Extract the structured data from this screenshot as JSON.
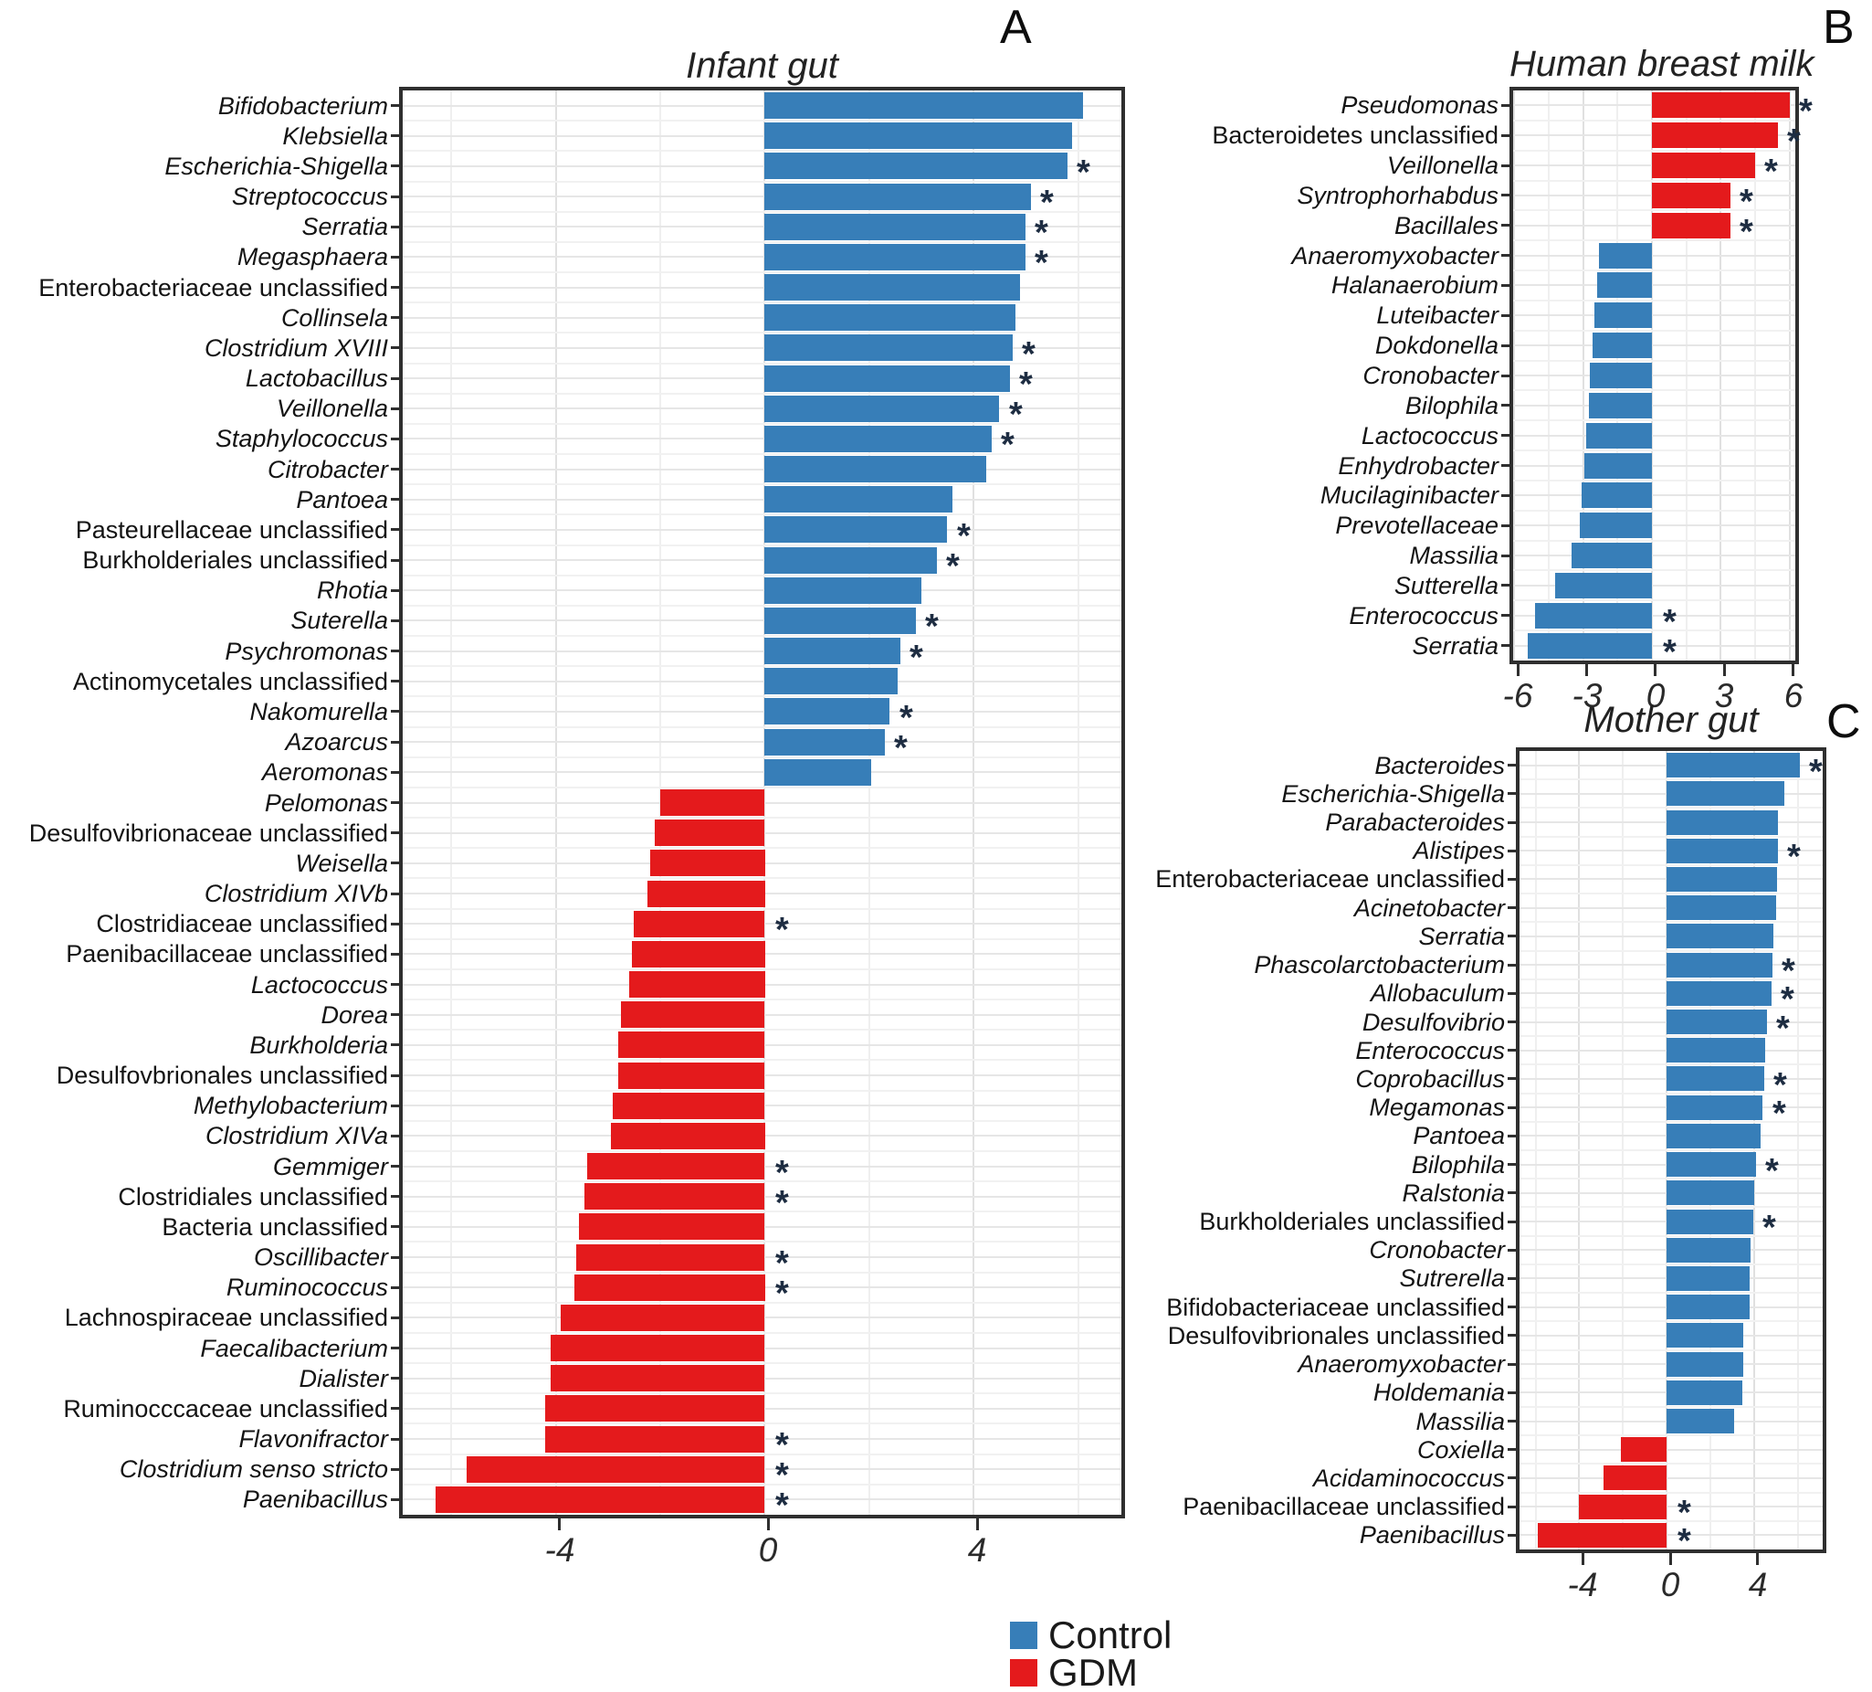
{
  "figure": {
    "background": "#ffffff"
  },
  "colors": {
    "control": "#377EB8",
    "gdm": "#E41A1C",
    "asterisk": "#1e2d42"
  },
  "legend": {
    "items": [
      {
        "label": "Control",
        "color": "#377EB8"
      },
      {
        "label": "GDM",
        "color": "#E41A1C"
      }
    ]
  },
  "chart_data": [
    {
      "id": "infant-gut",
      "type": "bar",
      "orientation": "horizontal",
      "title": "Infant gut",
      "panel_letter": "A",
      "xlim": [
        -7.0,
        6.9
      ],
      "xticks": [
        -4,
        0,
        4
      ],
      "xgrid_minor": [
        -6,
        -2,
        2,
        6
      ],
      "value_meaning": "LDA effect size; positive = Control (blue), negative = GDM (red)",
      "bars": [
        {
          "label": "Bifidobacterium",
          "value": 6.1,
          "group": "Control",
          "sig": false
        },
        {
          "label": "Klebsiella",
          "value": 5.9,
          "group": "Control",
          "sig": false
        },
        {
          "label": "Escherichia-Shigella",
          "value": 5.8,
          "group": "Control",
          "sig": true
        },
        {
          "label": "Streptococcus",
          "value": 5.1,
          "group": "Control",
          "sig": true
        },
        {
          "label": "Serratia",
          "value": 5.0,
          "group": "Control",
          "sig": true
        },
        {
          "label": "Megasphaera",
          "value": 5.0,
          "group": "Control",
          "sig": true
        },
        {
          "label": "Enterobacteriaceae unclassified",
          "value": 4.9,
          "group": "Control",
          "sig": false
        },
        {
          "label": "Collinsela",
          "value": 4.8,
          "group": "Control",
          "sig": false
        },
        {
          "label": "Clostridium XVIII",
          "value": 4.75,
          "group": "Control",
          "sig": true
        },
        {
          "label": "Lactobacillus",
          "value": 4.7,
          "group": "Control",
          "sig": true
        },
        {
          "label": "Veillonella",
          "value": 4.5,
          "group": "Control",
          "sig": true
        },
        {
          "label": "Staphylococcus",
          "value": 4.35,
          "group": "Control",
          "sig": true
        },
        {
          "label": "Citrobacter",
          "value": 4.25,
          "group": "Control",
          "sig": false
        },
        {
          "label": "Pantoea",
          "value": 3.6,
          "group": "Control",
          "sig": false
        },
        {
          "label": "Pasteurellaceae unclassified",
          "value": 3.5,
          "group": "Control",
          "sig": true
        },
        {
          "label": "Burkholderiales unclassified",
          "value": 3.3,
          "group": "Control",
          "sig": true
        },
        {
          "label": "Rhotia",
          "value": 3.0,
          "group": "Control",
          "sig": false
        },
        {
          "label": "Suterella",
          "value": 2.9,
          "group": "Control",
          "sig": true
        },
        {
          "label": "Psychromonas",
          "value": 2.6,
          "group": "Control",
          "sig": true
        },
        {
          "label": "Actinomycetales unclassified",
          "value": 2.55,
          "group": "Control",
          "sig": false
        },
        {
          "label": "Nakomurella",
          "value": 2.4,
          "group": "Control",
          "sig": true
        },
        {
          "label": "Azoarcus",
          "value": 2.3,
          "group": "Control",
          "sig": true
        },
        {
          "label": "Aeromonas",
          "value": 2.05,
          "group": "Control",
          "sig": false
        },
        {
          "label": "Pelomonas",
          "value": -2.0,
          "group": "GDM",
          "sig": false
        },
        {
          "label": "Desulfovibrionaceae unclassified",
          "value": -2.1,
          "group": "GDM",
          "sig": false
        },
        {
          "label": "Weisella",
          "value": -2.2,
          "group": "GDM",
          "sig": false
        },
        {
          "label": "Clostridium XIVb",
          "value": -2.25,
          "group": "GDM",
          "sig": false
        },
        {
          "label": "Clostridiaceae unclassified",
          "value": -2.5,
          "group": "GDM",
          "sig": true
        },
        {
          "label": "Paenibacillaceae unclassified",
          "value": -2.55,
          "group": "GDM",
          "sig": false
        },
        {
          "label": "Lactococcus",
          "value": -2.6,
          "group": "GDM",
          "sig": false
        },
        {
          "label": "Dorea",
          "value": -2.75,
          "group": "GDM",
          "sig": false
        },
        {
          "label": "Burkholderia",
          "value": -2.8,
          "group": "GDM",
          "sig": false
        },
        {
          "label": "Desulfovbrionales unclassified",
          "value": -2.8,
          "group": "GDM",
          "sig": false
        },
        {
          "label": "Methylobacterium",
          "value": -2.9,
          "group": "GDM",
          "sig": false
        },
        {
          "label": "Clostridium XIVa",
          "value": -2.95,
          "group": "GDM",
          "sig": false
        },
        {
          "label": "Gemmiger",
          "value": -3.4,
          "group": "GDM",
          "sig": true
        },
        {
          "label": "Clostridiales unclassified",
          "value": -3.45,
          "group": "GDM",
          "sig": true
        },
        {
          "label": "Bacteria unclassified",
          "value": -3.55,
          "group": "GDM",
          "sig": false
        },
        {
          "label": "Oscillibacter",
          "value": -3.6,
          "group": "GDM",
          "sig": true
        },
        {
          "label": "Ruminococcus",
          "value": -3.65,
          "group": "GDM",
          "sig": true
        },
        {
          "label": "Lachnospiraceae unclassified",
          "value": -3.9,
          "group": "GDM",
          "sig": false
        },
        {
          "label": "Faecalibacterium",
          "value": -4.1,
          "group": "GDM",
          "sig": false
        },
        {
          "label": "Dialister",
          "value": -4.1,
          "group": "GDM",
          "sig": false
        },
        {
          "label": "Ruminocccaceae unclassified",
          "value": -4.2,
          "group": "GDM",
          "sig": false
        },
        {
          "label": "Flavonifractor",
          "value": -4.2,
          "group": "GDM",
          "sig": true
        },
        {
          "label": "Clostridium senso stricto",
          "value": -5.7,
          "group": "GDM",
          "sig": true
        },
        {
          "label": "Paenibacillus",
          "value": -6.3,
          "group": "GDM",
          "sig": true
        }
      ]
    },
    {
      "id": "human-breast-milk",
      "type": "bar",
      "orientation": "horizontal",
      "title": "Human breast milk",
      "panel_letter": "B",
      "xlim": [
        -6.2,
        6.4
      ],
      "xticks": [
        -6,
        -3,
        0,
        3,
        6
      ],
      "xgrid_minor": [
        -4.5,
        -1.5,
        1.5,
        4.5
      ],
      "value_meaning": "LDA effect size; positive = GDM (red), negative = Control (blue)",
      "bars": [
        {
          "label": "Pseudomonas",
          "value": 6.0,
          "group": "GDM",
          "sig": true
        },
        {
          "label": "Bacteroidetes unclassified",
          "value": 5.5,
          "group": "GDM",
          "sig": true
        },
        {
          "label": "Veillonella",
          "value": 4.5,
          "group": "GDM",
          "sig": true
        },
        {
          "label": "Syntrophorhabdus",
          "value": 3.4,
          "group": "GDM",
          "sig": true
        },
        {
          "label": "Bacillales",
          "value": 3.4,
          "group": "GDM",
          "sig": true
        },
        {
          "label": "Anaeromyxobacter",
          "value": -2.3,
          "group": "Control",
          "sig": false
        },
        {
          "label": "Halanaerobium",
          "value": -2.4,
          "group": "Control",
          "sig": false
        },
        {
          "label": "Luteibacter",
          "value": -2.5,
          "group": "Control",
          "sig": false
        },
        {
          "label": "Dokdonella",
          "value": -2.6,
          "group": "Control",
          "sig": false
        },
        {
          "label": "Cronobacter",
          "value": -2.7,
          "group": "Control",
          "sig": false
        },
        {
          "label": "Bilophila",
          "value": -2.75,
          "group": "Control",
          "sig": false
        },
        {
          "label": "Lactococcus",
          "value": -2.85,
          "group": "Control",
          "sig": false
        },
        {
          "label": "Enhydrobacter",
          "value": -2.95,
          "group": "Control",
          "sig": false
        },
        {
          "label": "Mucilaginibacter",
          "value": -3.05,
          "group": "Control",
          "sig": false
        },
        {
          "label": "Prevotellaceae",
          "value": -3.15,
          "group": "Control",
          "sig": false
        },
        {
          "label": "Massilia",
          "value": -3.5,
          "group": "Control",
          "sig": false
        },
        {
          "label": "Sutterella",
          "value": -4.2,
          "group": "Control",
          "sig": false
        },
        {
          "label": "Enterococcus",
          "value": -5.1,
          "group": "Control",
          "sig": true
        },
        {
          "label": "Serratia",
          "value": -5.4,
          "group": "Control",
          "sig": true
        }
      ]
    },
    {
      "id": "mother-gut",
      "type": "bar",
      "orientation": "horizontal",
      "title": "Mother gut",
      "panel_letter": "C",
      "xlim": [
        -6.9,
        7.3
      ],
      "xticks": [
        -4,
        0,
        4
      ],
      "xgrid_minor": [
        -6,
        -2,
        2,
        6
      ],
      "value_meaning": "LDA effect size; positive = Control (blue), negative = GDM (red)",
      "bars": [
        {
          "label": "Bacteroides",
          "value": 6.1,
          "group": "Control",
          "sig": true
        },
        {
          "label": "Escherichia-Shigella",
          "value": 5.4,
          "group": "Control",
          "sig": false
        },
        {
          "label": "Parabacteroides",
          "value": 5.1,
          "group": "Control",
          "sig": false
        },
        {
          "label": "Alistipes",
          "value": 5.1,
          "group": "Control",
          "sig": true
        },
        {
          "label": "Enterobacteriaceae unclassified",
          "value": 5.05,
          "group": "Control",
          "sig": false
        },
        {
          "label": "Acinetobacter",
          "value": 5.0,
          "group": "Control",
          "sig": false
        },
        {
          "label": "Serratia",
          "value": 4.9,
          "group": "Control",
          "sig": false
        },
        {
          "label": "Phascolarctobacterium",
          "value": 4.85,
          "group": "Control",
          "sig": true
        },
        {
          "label": "Allobaculum",
          "value": 4.8,
          "group": "Control",
          "sig": true
        },
        {
          "label": "Desulfovibrio",
          "value": 4.6,
          "group": "Control",
          "sig": true
        },
        {
          "label": "Enterococcus",
          "value": 4.5,
          "group": "Control",
          "sig": false
        },
        {
          "label": "Coprobacillus",
          "value": 4.45,
          "group": "Control",
          "sig": true
        },
        {
          "label": "Megamonas",
          "value": 4.4,
          "group": "Control",
          "sig": true
        },
        {
          "label": "Pantoea",
          "value": 4.3,
          "group": "Control",
          "sig": false
        },
        {
          "label": "Bilophila",
          "value": 4.1,
          "group": "Control",
          "sig": true
        },
        {
          "label": "Ralstonia",
          "value": 4.0,
          "group": "Control",
          "sig": false
        },
        {
          "label": "Burkholderiales unclassified",
          "value": 3.95,
          "group": "Control",
          "sig": true
        },
        {
          "label": "Cronobacter",
          "value": 3.85,
          "group": "Control",
          "sig": false
        },
        {
          "label": "Sutrerella",
          "value": 3.8,
          "group": "Control",
          "sig": false
        },
        {
          "label": "Bifidobacteriaceae unclassified",
          "value": 3.8,
          "group": "Control",
          "sig": false
        },
        {
          "label": "Desulfovibrionales unclassified",
          "value": 3.5,
          "group": "Control",
          "sig": false
        },
        {
          "label": "Anaeromyxobacter",
          "value": 3.5,
          "group": "Control",
          "sig": false
        },
        {
          "label": "Holdemania",
          "value": 3.45,
          "group": "Control",
          "sig": false
        },
        {
          "label": "Massilia",
          "value": 3.1,
          "group": "Control",
          "sig": false
        },
        {
          "label": "Coxiella",
          "value": -2.1,
          "group": "GDM",
          "sig": false
        },
        {
          "label": "Acidaminococcus",
          "value": -2.9,
          "group": "GDM",
          "sig": false
        },
        {
          "label": "Paenibacillaceae unclassified",
          "value": -4.0,
          "group": "GDM",
          "sig": true
        },
        {
          "label": "Paenibacillus",
          "value": -5.9,
          "group": "GDM",
          "sig": true
        }
      ]
    }
  ]
}
